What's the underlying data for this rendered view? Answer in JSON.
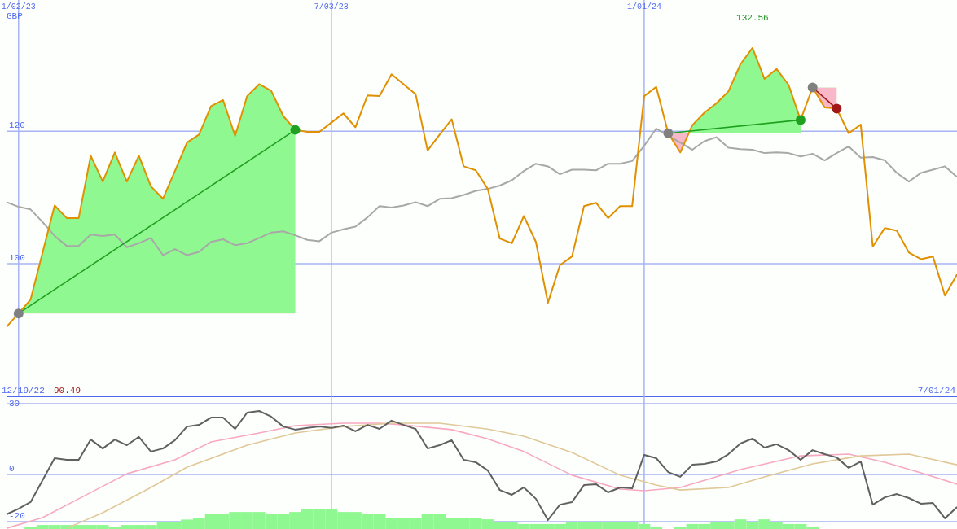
{
  "chart_data": [
    {
      "type": "line",
      "ylabel": "GBP",
      "xlim": [
        "2022-12-26",
        "2024-07-01"
      ],
      "ylim": [
        80,
        139.8
      ],
      "yticks": [
        100,
        120
      ],
      "xticks": [
        {
          "value": "2023-01-02",
          "label": "1/02/23"
        },
        {
          "value": "2023-07-03",
          "label": "7/03/23"
        },
        {
          "value": "2024-01-01",
          "label": "1/01/24"
        }
      ],
      "grid": true,
      "annotations": [
        "132.56",
        "90.49"
      ],
      "x": [
        "2022-12-26",
        "2023-01-02",
        "2023-01-09",
        "2023-01-16",
        "2023-01-23",
        "2023-01-30",
        "2023-02-06",
        "2023-02-13",
        "2023-02-20",
        "2023-02-27",
        "2023-03-06",
        "2023-03-13",
        "2023-03-20",
        "2023-03-27",
        "2023-04-03",
        "2023-04-10",
        "2023-04-17",
        "2023-04-24",
        "2023-05-01",
        "2023-05-08",
        "2023-05-15",
        "2023-05-22",
        "2023-05-29",
        "2023-06-05",
        "2023-06-12",
        "2023-06-19",
        "2023-06-26",
        "2023-07-03",
        "2023-07-10",
        "2023-07-17",
        "2023-07-24",
        "2023-07-31",
        "2023-08-07",
        "2023-08-14",
        "2023-08-21",
        "2023-08-28",
        "2023-09-04",
        "2023-09-11",
        "2023-09-18",
        "2023-09-25",
        "2023-10-02",
        "2023-10-09",
        "2023-10-16",
        "2023-10-23",
        "2023-10-30",
        "2023-11-06",
        "2023-11-13",
        "2023-11-20",
        "2023-11-27",
        "2023-12-04",
        "2023-12-11",
        "2023-12-18",
        "2023-12-25",
        "2024-01-01",
        "2024-01-08",
        "2024-01-15",
        "2024-01-22",
        "2024-01-29",
        "2024-02-05",
        "2024-02-12",
        "2024-02-19",
        "2024-02-26",
        "2024-03-04",
        "2024-03-11",
        "2024-03-18",
        "2024-03-25",
        "2024-04-01",
        "2024-04-08",
        "2024-04-15",
        "2024-04-22",
        "2024-04-29",
        "2024-05-06",
        "2024-05-13",
        "2024-05-20",
        "2024-05-27",
        "2024-06-03",
        "2024-06-10",
        "2024-06-17",
        "2024-06-24",
        "2024-07-01"
      ],
      "series": [
        {
          "color": "#a8a8a8",
          "values": [
            109.3,
            108.6,
            108.2,
            106.3,
            104.2,
            102.7,
            102.7,
            104.4,
            104.2,
            104.4,
            102.5,
            103.1,
            103.9,
            101.3,
            102.2,
            101.3,
            101.8,
            103.3,
            103.7,
            102.8,
            103.1,
            103.9,
            104.7,
            104.9,
            104.3,
            103.6,
            103.4,
            104.7,
            105.2,
            105.6,
            107.0,
            108.7,
            108.5,
            108.8,
            109.3,
            108.7,
            109.8,
            109.9,
            110.4,
            111.0,
            111.3,
            111.8,
            112.6,
            114.0,
            115.1,
            114.7,
            113.5,
            114.2,
            114.2,
            114.1,
            115.1,
            115.1,
            115.5,
            117.8,
            120.4,
            119.3,
            118.3,
            117.2,
            118.5,
            119.1,
            117.5,
            117.3,
            117.2,
            116.7,
            116.8,
            116.7,
            116.2,
            116.6,
            115.6,
            116.7,
            117.7,
            116.0,
            116.1,
            115.6,
            113.7,
            112.4,
            113.7,
            114.2,
            114.7,
            113.1
          ]
        },
        {
          "color": "#e09000",
          "values": [
            90.49,
            92.5,
            94.6,
            101.7,
            108.8,
            106.9,
            106.9,
            116.3,
            112.4,
            116.8,
            112.4,
            116.3,
            111.7,
            109.8,
            114.0,
            118.3,
            119.5,
            123.8,
            124.7,
            119.3,
            125.3,
            127.1,
            126.1,
            122.3,
            120.2,
            119.9,
            119.9,
            121.3,
            122.7,
            120.6,
            125.4,
            125.3,
            128.6,
            127.1,
            125.6,
            117.1,
            119.5,
            121.8,
            114.7,
            114.1,
            111.3,
            103.8,
            103.1,
            107.2,
            103.3,
            94.1,
            99.8,
            101.1,
            108.7,
            109.2,
            106.9,
            108.7,
            108.7,
            125.3,
            126.7,
            119.7,
            116.8,
            120.9,
            122.8,
            124.2,
            126.0,
            130.1,
            132.56,
            127.9,
            129.4,
            127.0,
            121.7,
            126.6,
            123.6,
            123.4,
            119.7,
            121.0,
            102.6,
            105.4,
            105.0,
            101.7,
            100.7,
            101.1,
            95.2,
            98.4
          ]
        },
        {
          "type": "line",
          "color": "#20a020",
          "x": [
            "2023-01-02",
            "2023-06-12"
          ],
          "values": [
            92.5,
            120.2
          ]
        },
        {
          "type": "line",
          "color": "#20a020",
          "x": [
            "2024-01-15",
            "2024-04-01"
          ],
          "values": [
            119.7,
            121.7
          ]
        },
        {
          "type": "line",
          "color": "#a01818",
          "x": [
            "2024-04-08",
            "2024-04-22"
          ],
          "values": [
            126.6,
            123.4
          ]
        },
        {
          "type": "scatter",
          "color": "#808080",
          "marker": "circle",
          "x": [
            "2023-01-02",
            "2024-01-15",
            "2024-04-08"
          ],
          "values": [
            92.5,
            119.7,
            126.6
          ]
        },
        {
          "type": "scatter",
          "color": "#20a020",
          "marker": "circle",
          "x": [
            "2023-06-12",
            "2024-04-01"
          ],
          "values": [
            120.2,
            121.7
          ]
        },
        {
          "type": "scatter",
          "color": "#a01818",
          "marker": "circle",
          "x": [
            "2024-04-22"
          ],
          "values": [
            123.4
          ]
        }
      ]
    },
    {
      "type": "line",
      "xlim": [
        "2022-12-26",
        "2024-07-01"
      ],
      "ylim": [
        -23.1,
        33.1
      ],
      "yticks": [
        -20,
        0,
        30
      ],
      "xticks": [
        {
          "value": "2023-07-03",
          "label": null
        },
        {
          "value": "2024-01-01",
          "label": null
        }
      ],
      "grid": true,
      "tick_labels": "y",
      "annotations": [
        "12/19/22",
        "7/01/24"
      ],
      "x": [
        "2022-12-26",
        "2023-01-02",
        "2023-01-09",
        "2023-01-16",
        "2023-01-23",
        "2023-01-30",
        "2023-02-06",
        "2023-02-13",
        "2023-02-20",
        "2023-02-27",
        "2023-03-06",
        "2023-03-13",
        "2023-03-20",
        "2023-03-27",
        "2023-04-03",
        "2023-04-10",
        "2023-04-17",
        "2023-04-24",
        "2023-05-01",
        "2023-05-08",
        "2023-05-15",
        "2023-05-22",
        "2023-05-29",
        "2023-06-05",
        "2023-06-12",
        "2023-06-19",
        "2023-06-26",
        "2023-07-03",
        "2023-07-10",
        "2023-07-17",
        "2023-07-24",
        "2023-07-31",
        "2023-08-07",
        "2023-08-14",
        "2023-08-21",
        "2023-08-28",
        "2023-09-04",
        "2023-09-11",
        "2023-09-18",
        "2023-09-25",
        "2023-10-02",
        "2023-10-09",
        "2023-10-16",
        "2023-10-23",
        "2023-10-30",
        "2023-11-06",
        "2023-11-13",
        "2023-11-20",
        "2023-11-27",
        "2023-12-04",
        "2023-12-11",
        "2023-12-18",
        "2023-12-25",
        "2024-01-01",
        "2024-01-08",
        "2024-01-15",
        "2024-01-22",
        "2024-01-29",
        "2024-02-05",
        "2024-02-12",
        "2024-02-19",
        "2024-02-26",
        "2024-03-04",
        "2024-03-11",
        "2024-03-18",
        "2024-03-25",
        "2024-04-01",
        "2024-04-08",
        "2024-04-15",
        "2024-04-22",
        "2024-04-29",
        "2024-05-06",
        "2024-05-13",
        "2024-05-20",
        "2024-05-27",
        "2024-06-03",
        "2024-06-10",
        "2024-06-17",
        "2024-06-24",
        "2024-07-01"
      ],
      "series": [
        {
          "type": "bar",
          "color": "#90f890",
          "x": [
            "2023-01-09",
            "2023-01-16",
            "2023-01-23",
            "2023-01-30",
            "2023-02-06",
            "2023-02-13",
            "2023-02-20",
            "2023-02-27",
            "2023-03-06",
            "2023-03-13",
            "2023-03-20",
            "2023-03-27",
            "2023-04-03",
            "2023-04-10",
            "2023-04-17",
            "2023-04-24",
            "2023-05-01",
            "2023-05-08",
            "2023-05-15",
            "2023-05-22",
            "2023-05-29",
            "2023-06-05",
            "2023-06-12",
            "2023-06-19",
            "2023-06-26",
            "2023-07-03",
            "2023-07-10",
            "2023-07-17",
            "2023-07-24",
            "2023-07-31",
            "2023-08-07",
            "2023-08-14",
            "2023-08-21",
            "2023-08-28",
            "2023-09-04",
            "2023-09-11",
            "2023-09-18",
            "2023-09-25",
            "2023-10-02",
            "2023-10-09",
            "2023-10-16",
            "2023-10-23",
            "2023-10-30",
            "2023-11-06",
            "2023-11-13",
            "2023-11-20",
            "2023-11-27",
            "2023-12-04",
            "2023-12-11",
            "2023-12-18",
            "2023-12-25",
            "2024-01-01",
            "2024-01-08",
            "2024-01-15",
            "2024-01-22",
            "2024-01-29",
            "2024-02-05",
            "2024-02-12",
            "2024-02-19",
            "2024-02-26",
            "2024-03-04",
            "2024-03-11",
            "2024-03-18",
            "2024-03-25",
            "2024-04-01",
            "2024-04-08"
          ],
          "values": [
            0.7,
            1.7,
            1.7,
            1.7,
            1.7,
            1.7,
            1.7,
            0.7,
            1.7,
            1.7,
            1.7,
            2.9,
            2.9,
            4.0,
            4.8,
            6.2,
            6.2,
            7.2,
            7.2,
            7.2,
            6.2,
            6.2,
            7.2,
            8.3,
            8.3,
            8.3,
            7.2,
            7.2,
            6.2,
            6.2,
            4.8,
            4.8,
            4.8,
            6.2,
            6.2,
            4.8,
            4.8,
            4.8,
            4.1,
            3.1,
            3.1,
            2.1,
            2.1,
            2.1,
            2.1,
            3.1,
            3.1,
            3.1,
            3.1,
            3.1,
            3.1,
            2.1,
            1.0,
            null,
            1.0,
            2.1,
            2.1,
            3.1,
            3.1,
            4.1,
            3.1,
            4.1,
            3.1,
            2.1,
            2.1,
            1.0
          ],
          "base": [
            -23.1,
            -23.1,
            -23.1,
            -23.1,
            -23.1,
            -23.1,
            -23.1,
            -23.1,
            -23.1,
            -23.1,
            -23.1,
            -23.1,
            -23.1,
            -23.1,
            -23.1,
            -23.1,
            -23.1,
            -23.1,
            -23.1,
            -23.1,
            -23.1,
            -23.1,
            -23.1,
            -23.1,
            -23.1,
            -23.1,
            -23.1,
            -23.1,
            -23.1,
            -23.1,
            -23.1,
            -23.1,
            -23.1,
            -23.1,
            -23.1,
            -23.1,
            -23.1,
            -23.1,
            -23.1,
            -23.1,
            -23.1,
            -23.1,
            -23.1,
            -23.1,
            -23.1,
            -23.1,
            -23.1,
            -23.1,
            -23.1,
            -23.1,
            -23.1,
            -23.1,
            -23.1,
            null,
            -23.1,
            -23.1,
            -23.1,
            -23.1,
            -23.1,
            -23.1,
            -23.1,
            -23.1,
            -23.1,
            -23.1,
            -23.1,
            -23.1
          ]
        },
        {
          "color": "#f8a8c0",
          "x": [
            "2022-12-26",
            "2023-01-16",
            "2023-02-06",
            "2023-03-06",
            "2023-04-03",
            "2023-04-24",
            "2023-05-22",
            "2023-06-12",
            "2023-07-10",
            "2023-07-31",
            "2023-08-14",
            "2023-09-11",
            "2023-10-02",
            "2023-10-23",
            "2023-11-20",
            "2023-12-18",
            "2024-01-01",
            "2024-01-22",
            "2024-02-26",
            "2024-04-01",
            "2024-04-29",
            "2024-05-20",
            "2024-06-10",
            "2024-07-01"
          ],
          "values": [
            -22.8,
            -18.3,
            -10.3,
            0.3,
            6.2,
            13.8,
            17.6,
            20.7,
            21.7,
            21.7,
            21.0,
            19.0,
            15.1,
            9.7,
            -0.3,
            -6.2,
            -6.9,
            -5.5,
            2.1,
            7.9,
            8.6,
            5.2,
            0.7,
            -4.1
          ]
        },
        {
          "color": "#e0c898",
          "x": [
            "2023-01-30",
            "2023-02-20",
            "2023-03-20",
            "2023-04-10",
            "2023-05-15",
            "2023-06-12",
            "2023-07-10",
            "2023-08-07",
            "2023-09-04",
            "2023-10-02",
            "2023-10-23",
            "2023-11-20",
            "2023-12-18",
            "2024-01-08",
            "2024-01-22",
            "2024-02-19",
            "2024-03-11",
            "2024-04-08",
            "2024-05-06",
            "2024-06-03",
            "2024-07-01"
          ],
          "values": [
            -22.8,
            -16.2,
            -5.5,
            3.1,
            12.4,
            17.6,
            20.3,
            21.7,
            21.7,
            19.2,
            16.2,
            9.3,
            -0.3,
            -4.5,
            -6.6,
            -5.5,
            -1.0,
            4.5,
            7.9,
            8.6,
            4.1
          ]
        },
        {
          "color": "#606060",
          "values": [
            -16.9,
            -14.5,
            -11.7,
            -2.4,
            6.9,
            6.2,
            6.2,
            14.8,
            11.0,
            14.8,
            12.4,
            15.9,
            9.7,
            11.0,
            14.5,
            20.3,
            21.0,
            24.1,
            24.1,
            19.3,
            26.2,
            26.9,
            24.5,
            20.3,
            19.0,
            19.7,
            20.3,
            19.7,
            20.7,
            18.3,
            21.0,
            19.3,
            22.8,
            21.0,
            19.3,
            11.0,
            12.4,
            14.5,
            6.2,
            5.2,
            1.7,
            -6.6,
            -8.6,
            -5.5,
            -10.3,
            -19.3,
            -12.8,
            -11.7,
            -4.5,
            -4.1,
            -7.6,
            -5.5,
            -5.9,
            8.3,
            6.9,
            1.0,
            -1.0,
            4.1,
            4.5,
            5.5,
            8.6,
            13.1,
            15.2,
            11.4,
            12.8,
            10.3,
            6.2,
            10.3,
            8.6,
            7.2,
            2.8,
            5.5,
            -12.8,
            -9.7,
            -8.3,
            -10.0,
            -12.4,
            -12.1,
            -18.6,
            -13.8
          ]
        }
      ]
    }
  ]
}
